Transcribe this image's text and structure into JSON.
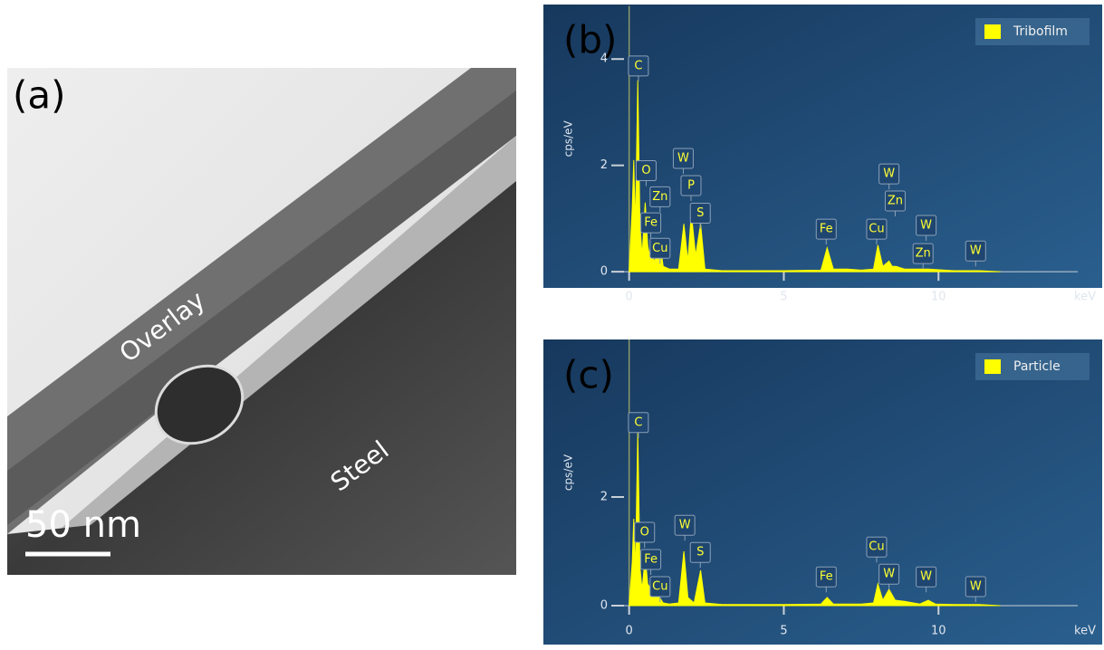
{
  "image_panel": {
    "panel_label": "(a)",
    "labels": [
      "Overlay",
      "Steel"
    ],
    "scale_bar": "50 nm"
  },
  "chart_data": [
    {
      "type": "area",
      "panel_label": "(b)",
      "ylabel": "cps/eV",
      "xlabel": "keV",
      "series": [
        {
          "name": "Tribofilm",
          "color": "#ffff00",
          "x": [
            0,
            0.1,
            0.15,
            0.2,
            0.28,
            0.35,
            0.42,
            0.52,
            0.6,
            0.66,
            0.71,
            0.8,
            0.93,
            1.01,
            1.1,
            1.3,
            1.6,
            1.77,
            1.9,
            2.01,
            2.15,
            2.31,
            2.45,
            3,
            5,
            6.2,
            6.4,
            6.6,
            7.06,
            7.5,
            7.9,
            8.04,
            8.2,
            8.4,
            8.5,
            8.63,
            8.9,
            9.67,
            10.5,
            11.3,
            12
          ],
          "values": [
            0,
            1.2,
            2.1,
            0.8,
            3.6,
            0.9,
            0.3,
            1.3,
            0.5,
            0.3,
            0.6,
            0.2,
            0.3,
            0.5,
            0.1,
            0.05,
            0.05,
            0.9,
            0.2,
            1.1,
            0.3,
            0.9,
            0.05,
            0.02,
            0.02,
            0.03,
            0.45,
            0.05,
            0.05,
            0.03,
            0.05,
            0.5,
            0.1,
            0.2,
            0.1,
            0.1,
            0.05,
            0.05,
            0.02,
            0.02,
            0
          ]
        }
      ],
      "xlim": [
        -0.4,
        14.5
      ],
      "ylim": [
        -0.1,
        5.0
      ],
      "xticks": [
        0,
        5,
        10
      ],
      "yticks": [
        0,
        2,
        4
      ],
      "annotations": [
        {
          "text": "C",
          "x": 0.3,
          "y": 3.87
        },
        {
          "text": "O",
          "x": 0.55,
          "y": 1.9
        },
        {
          "text": "Zn",
          "x": 1.0,
          "y": 1.41
        },
        {
          "text": "Fe",
          "x": 0.7,
          "y": 0.92
        },
        {
          "text": "Cu",
          "x": 1.0,
          "y": 0.44
        },
        {
          "text": "W",
          "x": 1.75,
          "y": 2.13
        },
        {
          "text": "P",
          "x": 2.0,
          "y": 1.62
        },
        {
          "text": "S",
          "x": 2.3,
          "y": 1.1
        },
        {
          "text": "Fe",
          "x": 6.37,
          "y": 0.8
        },
        {
          "text": "Cu",
          "x": 8.0,
          "y": 0.8
        },
        {
          "text": "W",
          "x": 8.4,
          "y": 1.84
        },
        {
          "text": "Zn",
          "x": 8.6,
          "y": 1.33
        },
        {
          "text": "W",
          "x": 9.6,
          "y": 0.87
        },
        {
          "text": "Zn",
          "x": 9.5,
          "y": 0.34
        },
        {
          "text": "W",
          "x": 11.2,
          "y": 0.39
        }
      ]
    },
    {
      "type": "area",
      "panel_label": "(c)",
      "ylabel": "cps/eV",
      "xlabel": "keV",
      "series": [
        {
          "name": "Particle",
          "color": "#ffff00",
          "x": [
            0,
            0.1,
            0.15,
            0.2,
            0.28,
            0.35,
            0.42,
            0.52,
            0.6,
            0.71,
            0.8,
            0.93,
            1.1,
            1.3,
            1.6,
            1.77,
            1.9,
            2.1,
            2.31,
            2.45,
            3,
            5,
            6.2,
            6.4,
            6.6,
            7.5,
            7.9,
            8.04,
            8.2,
            8.4,
            8.6,
            8.9,
            9.4,
            9.67,
            9.9,
            10.5,
            11.3,
            12
          ],
          "values": [
            0,
            0.8,
            1.6,
            0.6,
            3.2,
            0.7,
            0.3,
            0.9,
            0.4,
            0.3,
            0.15,
            0.2,
            0.05,
            0.03,
            0.05,
            1.0,
            0.15,
            0.05,
            0.65,
            0.05,
            0.02,
            0.02,
            0.03,
            0.15,
            0.03,
            0.03,
            0.05,
            0.4,
            0.1,
            0.3,
            0.1,
            0.08,
            0.03,
            0.1,
            0.03,
            0.02,
            0.02,
            0
          ]
        }
      ],
      "xlim": [
        -0.4,
        14.5
      ],
      "ylim": [
        -0.1,
        4.9
      ],
      "xticks": [
        0,
        5,
        10
      ],
      "yticks": [
        0,
        2
      ],
      "annotations": [
        {
          "text": "C",
          "x": 0.3,
          "y": 3.37
        },
        {
          "text": "O",
          "x": 0.5,
          "y": 1.35
        },
        {
          "text": "Fe",
          "x": 0.7,
          "y": 0.85
        },
        {
          "text": "Cu",
          "x": 1.0,
          "y": 0.35
        },
        {
          "text": "W",
          "x": 1.8,
          "y": 1.48
        },
        {
          "text": "S",
          "x": 2.3,
          "y": 0.98
        },
        {
          "text": "Fe",
          "x": 6.37,
          "y": 0.53
        },
        {
          "text": "Cu",
          "x": 8.0,
          "y": 1.08
        },
        {
          "text": "W",
          "x": 8.4,
          "y": 0.58
        },
        {
          "text": "W",
          "x": 9.6,
          "y": 0.53
        },
        {
          "text": "W",
          "x": 11.2,
          "y": 0.35
        }
      ]
    }
  ]
}
